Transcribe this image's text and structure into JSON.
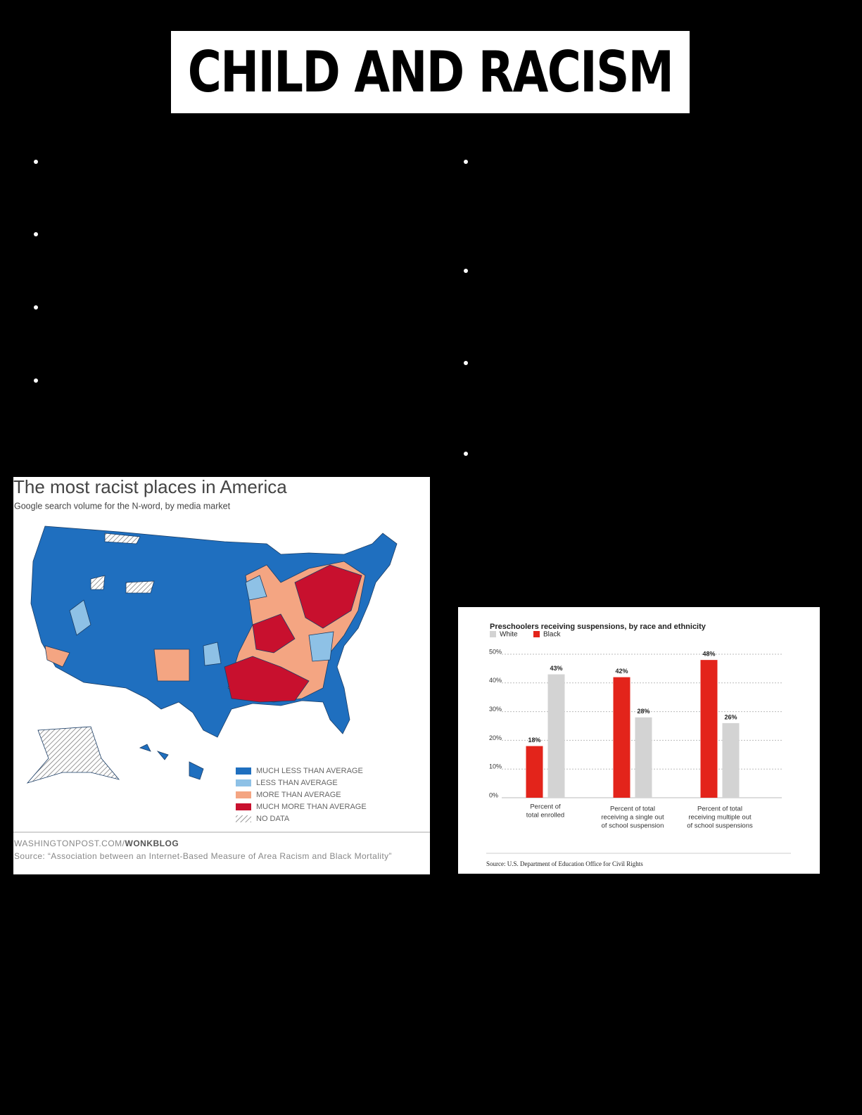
{
  "header": {
    "title": "CHILD AND RACISM"
  },
  "map_panel": {
    "title": "The most racist places in America",
    "subtitle": "Google search volume for the N-word, by media market",
    "legend": [
      {
        "label": "MUCH LESS THAN AVERAGE",
        "color": "#1f6fbf"
      },
      {
        "label": "LESS THAN AVERAGE",
        "color": "#8ec1e6"
      },
      {
        "label": "MORE THAN AVERAGE",
        "color": "#f4a582"
      },
      {
        "label": "MUCH MORE THAN AVERAGE",
        "color": "#c8102e"
      },
      {
        "label": "NO DATA",
        "color": "hatch"
      }
    ],
    "footer_site": "WASHINGTONPOST.COM/",
    "footer_blog": "WONKBLOG",
    "source": "Source: “Association between an Internet-Based Measure of Area Racism and Black Mortality”"
  },
  "chart_data": {
    "type": "bar",
    "title": "Preschoolers receiving suspensions, by race and ethnicity",
    "categories": [
      [
        "Percent of",
        "total enrolled"
      ],
      [
        "Percent of total",
        "receiving a single out",
        "of school suspension"
      ],
      [
        "Percent of total",
        "receiving multiple out",
        "of school suspensions"
      ]
    ],
    "series": [
      {
        "name": "White",
        "color": "#d3d3d3",
        "values": [
          43,
          28,
          26
        ],
        "value_labels": [
          "43%",
          "28%",
          "26%"
        ]
      },
      {
        "name": "Black",
        "color": "#e3241b",
        "values": [
          18,
          42,
          48
        ],
        "value_labels": [
          "18%",
          "42%",
          "48%"
        ]
      }
    ],
    "ylim": [
      0,
      50
    ],
    "yticks": [
      {
        "value": 0,
        "label": "0%"
      },
      {
        "value": 10,
        "label": "10%"
      },
      {
        "value": 20,
        "label": "20%"
      },
      {
        "value": 30,
        "label": "30%"
      },
      {
        "value": 40,
        "label": "40%"
      },
      {
        "value": 50,
        "label": "50%"
      }
    ],
    "grid": true,
    "source": "Source: U.S. Department of Education Office for Civil Rights"
  }
}
